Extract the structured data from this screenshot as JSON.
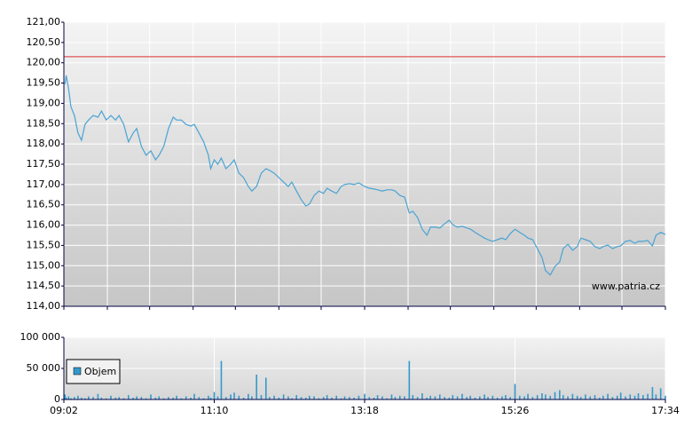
{
  "chart_data": [
    {
      "type": "line",
      "watermark": "www.patria.cz",
      "color": "#4aa3d3",
      "reference_line": 120.15,
      "reference_color": "#e03030",
      "x": [
        "09:03",
        "09:04",
        "09:06",
        "09:08",
        "09:11",
        "09:14",
        "09:17",
        "09:20",
        "09:23",
        "09:27",
        "09:31",
        "09:34",
        "09:38",
        "09:42",
        "09:46",
        "09:49",
        "09:53",
        "09:57",
        "10:01",
        "10:04",
        "10:08",
        "10:12",
        "10:16",
        "10:20",
        "10:23",
        "10:27",
        "10:31",
        "10:35",
        "10:38",
        "10:42",
        "10:46",
        "10:50",
        "10:53",
        "10:57",
        "11:01",
        "11:05",
        "11:07",
        "11:10",
        "11:13",
        "11:16",
        "11:20",
        "11:24",
        "11:27",
        "11:31",
        "11:35",
        "11:39",
        "11:42",
        "11:46",
        "11:50",
        "11:54",
        "11:57",
        "12:01",
        "12:05",
        "12:09",
        "12:13",
        "12:16",
        "12:20",
        "12:24",
        "12:28",
        "12:31",
        "12:35",
        "12:39",
        "12:43",
        "12:46",
        "12:50",
        "12:54",
        "12:58",
        "13:01",
        "13:05",
        "13:09",
        "13:13",
        "13:18",
        "13:22",
        "13:26",
        "13:29",
        "13:33",
        "13:37",
        "13:41",
        "13:44",
        "13:48",
        "13:52",
        "13:56",
        "13:59",
        "14:03",
        "14:07",
        "14:11",
        "14:14",
        "14:18",
        "14:22",
        "14:26",
        "14:30",
        "14:33",
        "14:37",
        "14:41",
        "14:45",
        "14:48",
        "14:52",
        "14:56",
        "15:00",
        "15:03",
        "15:07",
        "15:11",
        "15:15",
        "15:18",
        "15:22",
        "15:26",
        "15:30",
        "15:34",
        "15:37",
        "15:41",
        "15:45",
        "15:49",
        "15:52",
        "15:56",
        "16:00",
        "16:04",
        "16:07",
        "16:11",
        "16:15",
        "16:19",
        "16:22",
        "16:26",
        "16:30",
        "16:34",
        "16:38",
        "16:41",
        "16:45",
        "16:49",
        "16:53",
        "16:56",
        "17:00",
        "17:04",
        "17:08",
        "17:11",
        "17:15",
        "17:19",
        "17:23",
        "17:26",
        "17:30",
        "17:34"
      ],
      "values": [
        119.47,
        119.69,
        119.36,
        118.92,
        118.7,
        118.27,
        118.09,
        118.48,
        118.59,
        118.7,
        118.66,
        118.81,
        118.59,
        118.7,
        118.59,
        118.7,
        118.48,
        118.05,
        118.27,
        118.38,
        117.94,
        117.72,
        117.83,
        117.61,
        117.72,
        117.94,
        118.38,
        118.66,
        118.59,
        118.59,
        118.48,
        118.44,
        118.48,
        118.27,
        118.05,
        117.72,
        117.39,
        117.61,
        117.5,
        117.65,
        117.39,
        117.5,
        117.61,
        117.28,
        117.17,
        116.95,
        116.84,
        116.95,
        117.28,
        117.39,
        117.35,
        117.28,
        117.17,
        117.06,
        116.95,
        117.06,
        116.84,
        116.63,
        116.47,
        116.52,
        116.73,
        116.84,
        116.78,
        116.91,
        116.84,
        116.78,
        116.95,
        117.0,
        117.02,
        117.0,
        117.04,
        116.95,
        116.91,
        116.89,
        116.87,
        116.84,
        116.87,
        116.87,
        116.84,
        116.73,
        116.69,
        116.3,
        116.34,
        116.19,
        115.9,
        115.75,
        115.95,
        115.95,
        115.93,
        116.03,
        116.12,
        116.01,
        115.95,
        115.97,
        115.93,
        115.9,
        115.82,
        115.75,
        115.68,
        115.64,
        115.6,
        115.64,
        115.68,
        115.64,
        115.79,
        115.9,
        115.82,
        115.75,
        115.68,
        115.64,
        115.42,
        115.2,
        114.88,
        114.77,
        114.98,
        115.09,
        115.42,
        115.53,
        115.38,
        115.47,
        115.68,
        115.64,
        115.6,
        115.47,
        115.42,
        115.47,
        115.51,
        115.42,
        115.47,
        115.49,
        115.6,
        115.62,
        115.55,
        115.6,
        115.6,
        115.62,
        115.49,
        115.75,
        115.82,
        115.77
      ],
      "xlim": [
        "09:02",
        "17:34"
      ],
      "xgrid": [
        "09:02",
        "09:39",
        "10:15",
        "10:52",
        "11:28",
        "12:05",
        "12:41",
        "13:18",
        "13:55",
        "14:31",
        "15:08",
        "15:44",
        "16:21",
        "16:57",
        "17:34"
      ],
      "ylim": [
        114,
        121
      ],
      "yticks": [
        {
          "value": 114,
          "label": "114,00"
        },
        {
          "value": 114.5,
          "label": "114,50"
        },
        {
          "value": 115,
          "label": "115,00"
        },
        {
          "value": 115.5,
          "label": "115,50"
        },
        {
          "value": 116,
          "label": "116,00"
        },
        {
          "value": 116.5,
          "label": "116,50"
        },
        {
          "value": 117,
          "label": "117,00"
        },
        {
          "value": 117.5,
          "label": "117,50"
        },
        {
          "value": 118,
          "label": "118,00"
        },
        {
          "value": 118.5,
          "label": "118,50"
        },
        {
          "value": 119,
          "label": "119,00"
        },
        {
          "value": 119.5,
          "label": "119,50"
        },
        {
          "value": 120,
          "label": "120,00"
        },
        {
          "value": 120.5,
          "label": "120,50"
        },
        {
          "value": 121,
          "label": "121,00"
        }
      ],
      "grid": true
    },
    {
      "type": "bar",
      "x": [
        "09:03",
        "09:04",
        "09:06",
        "09:08",
        "09:11",
        "09:14",
        "09:17",
        "09:20",
        "09:23",
        "09:27",
        "09:31",
        "09:34",
        "09:38",
        "09:42",
        "09:46",
        "09:49",
        "09:53",
        "09:57",
        "10:01",
        "10:04",
        "10:08",
        "10:12",
        "10:16",
        "10:20",
        "10:23",
        "10:27",
        "10:31",
        "10:35",
        "10:38",
        "10:42",
        "10:46",
        "10:50",
        "10:53",
        "10:57",
        "11:01",
        "11:05",
        "11:07",
        "11:10",
        "11:13",
        "11:16",
        "11:20",
        "11:24",
        "11:27",
        "11:31",
        "11:35",
        "11:39",
        "11:42",
        "11:46",
        "11:50",
        "11:54",
        "11:57",
        "12:01",
        "12:05",
        "12:09",
        "12:13",
        "12:16",
        "12:20",
        "12:24",
        "12:28",
        "12:31",
        "12:35",
        "12:39",
        "12:43",
        "12:46",
        "12:50",
        "12:54",
        "12:58",
        "13:01",
        "13:05",
        "13:09",
        "13:13",
        "13:18",
        "13:22",
        "13:26",
        "13:29",
        "13:33",
        "13:37",
        "13:41",
        "13:44",
        "13:48",
        "13:52",
        "13:56",
        "13:59",
        "14:03",
        "14:07",
        "14:11",
        "14:14",
        "14:18",
        "14:22",
        "14:26",
        "14:30",
        "14:33",
        "14:37",
        "14:41",
        "14:45",
        "14:48",
        "14:52",
        "14:56",
        "15:00",
        "15:03",
        "15:07",
        "15:11",
        "15:15",
        "15:18",
        "15:22",
        "15:26",
        "15:30",
        "15:34",
        "15:37",
        "15:41",
        "15:45",
        "15:49",
        "15:52",
        "15:56",
        "16:00",
        "16:04",
        "16:07",
        "16:11",
        "16:15",
        "16:19",
        "16:22",
        "16:26",
        "16:30",
        "16:34",
        "16:38",
        "16:41",
        "16:45",
        "16:49",
        "16:53",
        "16:56",
        "17:00",
        "17:04",
        "17:08",
        "17:11",
        "17:15",
        "17:19",
        "17:23",
        "17:26",
        "17:30",
        "17:34"
      ],
      "series": [
        {
          "name": "Objem",
          "color": "#3399cc",
          "values": [
            8000,
            3000,
            5000,
            2000,
            4000,
            6000,
            3000,
            2000,
            5000,
            4000,
            9000,
            3000,
            2000,
            6000,
            3000,
            4000,
            2000,
            7000,
            3000,
            5000,
            4000,
            2000,
            8000,
            3000,
            5000,
            2000,
            4000,
            3000,
            6000,
            2000,
            5000,
            3000,
            9000,
            4000,
            2000,
            6000,
            3000,
            12000,
            5000,
            62000,
            4000,
            8000,
            11000,
            6000,
            3000,
            9000,
            5000,
            40000,
            7000,
            35000,
            4000,
            6000,
            3000,
            8000,
            5000,
            2000,
            7000,
            4000,
            3000,
            6000,
            5000,
            2000,
            4000,
            7000,
            3000,
            6000,
            2000,
            5000,
            4000,
            3000,
            6000,
            9000,
            4000,
            3000,
            7000,
            5000,
            2000,
            8000,
            4000,
            6000,
            5000,
            62000,
            7000,
            4000,
            10000,
            3000,
            6000,
            5000,
            8000,
            4000,
            3000,
            7000,
            5000,
            9000,
            4000,
            6000,
            3000,
            5000,
            8000,
            4000,
            6000,
            3000,
            5000,
            7000,
            4000,
            25000,
            6000,
            5000,
            9000,
            4000,
            7000,
            10000,
            8000,
            6000,
            12000,
            15000,
            7000,
            5000,
            9000,
            6000,
            4000,
            8000,
            5000,
            7000,
            3000,
            6000,
            9000,
            4000,
            6000,
            11000,
            5000,
            8000,
            6000,
            10000,
            7000,
            9000,
            20000,
            8000,
            18000,
            6000
          ]
        }
      ],
      "xlim": [
        "09:02",
        "17:34"
      ],
      "xticks": [
        "09:02",
        "11:10",
        "13:18",
        "15:26",
        "17:34"
      ],
      "ylim": [
        0,
        100000
      ],
      "yticks": [
        0,
        {
          "value": 50000,
          "label": "50 000"
        },
        {
          "value": 100000,
          "label": "100 000"
        }
      ],
      "grid": true
    }
  ]
}
